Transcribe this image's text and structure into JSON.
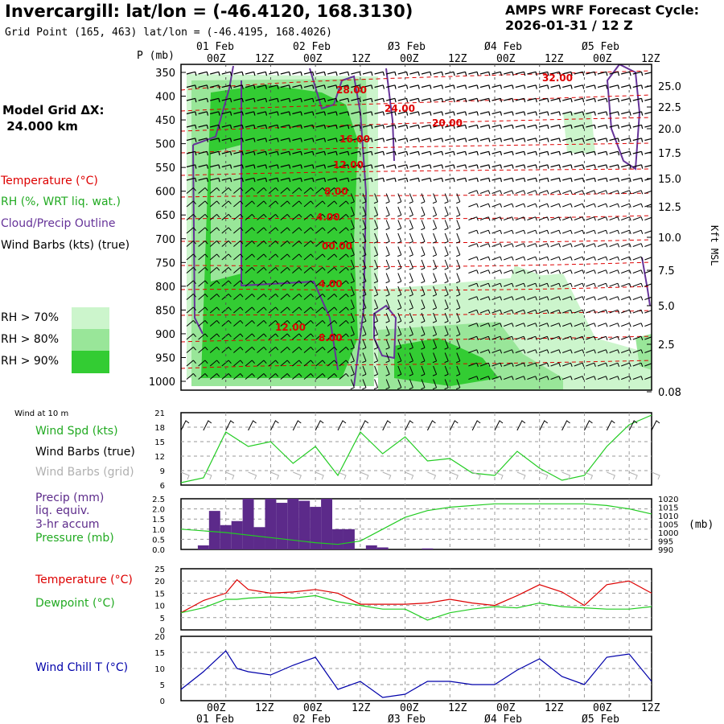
{
  "header": {
    "title": "Invercargill:  lat/lon = (-46.4120, 168.3130)",
    "grid_point": "Grid Point (165, 463) lat/lon = (-46.4195, 168.4026)",
    "cycle_label": "AMPS WRF Forecast Cycle:",
    "cycle_value": "2026-01-31 / 12  Z"
  },
  "model": {
    "label": "Model Grid ΔX:",
    "value": " 24.000 km"
  },
  "upper_legend": {
    "temperature": "Temperature (°C)",
    "rh": "RH (%, WRT liq. wat.)",
    "cloud": "Cloud/Precip Outline",
    "wind": "Wind Barbs (kts) (true)",
    "rh70": "RH > 70%",
    "rh80": "RH > 80%",
    "rh90": "RH > 90%"
  },
  "colors": {
    "rh70": "#ccf5cc",
    "rh80": "#99e699",
    "rh90": "#33cc33",
    "temperature": "#dd0000",
    "rh_line": "#22cc22",
    "cloud": "#663399",
    "wind_chill": "#0000aa",
    "precip": "#5c2a8a"
  },
  "time_axis": {
    "top_days": [
      "01 Feb",
      "02 Feb",
      "Ø3 Feb",
      "Ø4 Feb",
      "Ø5 Feb"
    ],
    "bottom_days": [
      "01 Feb",
      "02 Feb",
      "Ø3 Feb",
      "Ø4 Feb",
      "Ø5 Feb"
    ],
    "hours": [
      "00Z",
      "12Z",
      "00Z",
      "12Z",
      "00Z",
      "12Z",
      "00Z",
      "12Z",
      "00Z",
      "12Z"
    ]
  },
  "chart_data": [
    {
      "type": "heatmap",
      "name": "cross-section",
      "ylabel": "P (mb)",
      "y2label": "Kft MSL",
      "pressure_ticks": [
        "350",
        "400",
        "450",
        "500",
        "550",
        "600",
        "650",
        "700",
        "750",
        "800",
        "850",
        "900",
        "950",
        "1000"
      ],
      "height_ticks": [
        "25.0",
        "22.5",
        "20.0",
        "17.5",
        "15.0",
        "12.5",
        "10.0",
        "7.5",
        "5.0",
        "2.5",
        "0.08"
      ],
      "temperature_labels": [
        "32.00",
        "28.00",
        "24.00",
        "20.00",
        "16.00",
        "12.00",
        "8.00",
        "4.00",
        "00.00",
        "4.00",
        "12.00",
        "8.00"
      ]
    },
    {
      "type": "line",
      "name": "wind",
      "title": "Wind at 10 m",
      "series_labels": [
        "Wind Spd (kts)",
        "Wind Barbs (true)",
        "Wind Barbs (grid)"
      ],
      "y_ticks": [
        "21",
        "18",
        "15",
        "12",
        "9",
        "6"
      ],
      "ylim": [
        6,
        21
      ],
      "x_hours": [
        -12,
        -6,
        0,
        6,
        12,
        18,
        24,
        30,
        36,
        42,
        48,
        54,
        60,
        66,
        72,
        78,
        84,
        90,
        96,
        102,
        108,
        114
      ],
      "values": [
        6.5,
        7.5,
        17,
        14,
        15,
        10.5,
        14,
        8,
        17,
        12.5,
        16,
        11,
        11.5,
        8.5,
        8,
        13,
        9.5,
        7,
        8,
        14,
        18.5,
        20.5
      ]
    },
    {
      "type": "bar",
      "name": "precip-pressure",
      "series_labels": [
        "Precip (mm)",
        "liq. equiv.",
        "3-hr accum",
        "Pressure (mb)"
      ],
      "y_ticks": [
        "2.5",
        "2.0",
        "1.5",
        "1.0",
        "0.5",
        "0.0"
      ],
      "y2_ticks": [
        "1020",
        "1015",
        "1010",
        "1005",
        "1000",
        "995",
        "990"
      ],
      "y2label": "(mb)",
      "ylim": [
        0,
        2.5
      ],
      "y2lim": [
        990,
        1020
      ],
      "precip_hours": [
        -9,
        -6,
        -3,
        0,
        3,
        6,
        9,
        12,
        15,
        18,
        21,
        24,
        27,
        30,
        33,
        36,
        39,
        42,
        45,
        48,
        51,
        54
      ],
      "precip_values": [
        0,
        0.2,
        1.9,
        1.2,
        1.4,
        2.5,
        1.1,
        2.5,
        2.3,
        2.5,
        2.4,
        2.1,
        2.5,
        1.0,
        1.0,
        0,
        0.2,
        0.1,
        0,
        0,
        0,
        0.05
      ],
      "pressure_hours": [
        -12,
        0,
        12,
        24,
        30,
        36,
        42,
        48,
        54,
        60,
        72,
        84,
        96,
        102,
        108,
        114
      ],
      "pressure_values": [
        1002,
        1000,
        997,
        994,
        993,
        995,
        1002,
        1009,
        1013,
        1015,
        1017,
        1017,
        1017,
        1016,
        1014,
        1011
      ]
    },
    {
      "type": "line",
      "name": "temperature-dewpoint",
      "series_labels": [
        "Temperature (°C)",
        "Dewpoint (°C)"
      ],
      "y_ticks": [
        "25",
        "20",
        "15",
        "10",
        "5",
        "0"
      ],
      "ylim": [
        0,
        25
      ],
      "x_hours": [
        -12,
        -6,
        0,
        3,
        6,
        12,
        18,
        24,
        30,
        36,
        42,
        48,
        54,
        60,
        66,
        72,
        78,
        84,
        90,
        96,
        102,
        108,
        114
      ],
      "temperature": [
        7,
        12,
        15,
        20.5,
        16.5,
        15,
        15.5,
        16.5,
        15,
        10.5,
        10.5,
        10.5,
        11,
        12.5,
        11,
        10,
        14,
        18.5,
        15.5,
        10,
        18.5,
        20,
        15
      ],
      "dewpoint": [
        7,
        9,
        12.5,
        12.5,
        13,
        13.5,
        13,
        14,
        11.5,
        10,
        8.5,
        8.5,
        4,
        7,
        8.5,
        9.5,
        9,
        11,
        9.5,
        9,
        8.5,
        8.5,
        9.5
      ]
    },
    {
      "type": "line",
      "name": "wind-chill",
      "series_labels": [
        "Wind Chill T (°C)"
      ],
      "y_ticks": [
        "20",
        "15",
        "10",
        "5",
        "0"
      ],
      "ylim": [
        0,
        20
      ],
      "x_hours": [
        -12,
        -6,
        0,
        3,
        6,
        12,
        18,
        24,
        30,
        36,
        42,
        48,
        54,
        60,
        66,
        72,
        78,
        84,
        90,
        96,
        102,
        108,
        114
      ],
      "values": [
        3.5,
        9,
        15.5,
        10,
        9,
        8,
        11,
        13.5,
        3.5,
        6,
        1,
        2,
        6,
        6,
        5,
        5,
        9.5,
        13,
        7.5,
        5,
        13.5,
        14.5,
        6
      ]
    }
  ]
}
